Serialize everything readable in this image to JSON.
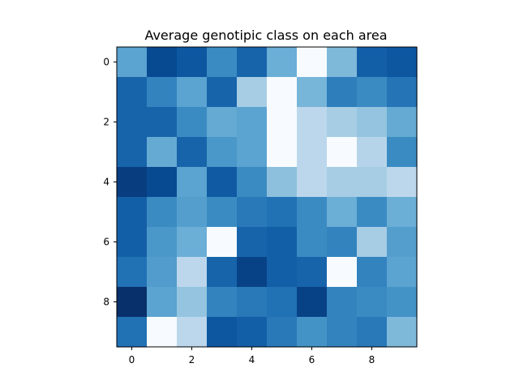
{
  "chart_data": {
    "type": "heatmap",
    "title": "Average genotipic class on each area",
    "xlabel": "",
    "ylabel": "",
    "colormap": "Blues",
    "vmin": 0,
    "vmax": 1,
    "x_ticks": [
      0,
      2,
      4,
      6,
      8
    ],
    "y_ticks": [
      0,
      2,
      4,
      6,
      8
    ],
    "x_tick_labels": [
      "0",
      "2",
      "4",
      "6",
      "8"
    ],
    "y_tick_labels": [
      "0",
      "2",
      "4",
      "6",
      "8"
    ],
    "rows": 10,
    "cols": 10,
    "values": [
      [
        0.55,
        0.9,
        0.85,
        0.65,
        0.8,
        0.5,
        0.0,
        0.45,
        0.82,
        0.85
      ],
      [
        0.8,
        0.68,
        0.55,
        0.8,
        0.35,
        0.0,
        0.47,
        0.7,
        0.65,
        0.74
      ],
      [
        0.8,
        0.8,
        0.65,
        0.52,
        0.55,
        0.0,
        0.28,
        0.35,
        0.4,
        0.52
      ],
      [
        0.8,
        0.52,
        0.8,
        0.6,
        0.55,
        0.0,
        0.28,
        0.0,
        0.3,
        0.65
      ],
      [
        0.95,
        0.9,
        0.55,
        0.84,
        0.65,
        0.42,
        0.28,
        0.35,
        0.35,
        0.28
      ],
      [
        0.82,
        0.65,
        0.57,
        0.65,
        0.72,
        0.75,
        0.65,
        0.5,
        0.65,
        0.5
      ],
      [
        0.82,
        0.6,
        0.5,
        0.0,
        0.8,
        0.82,
        0.65,
        0.68,
        0.35,
        0.57
      ],
      [
        0.75,
        0.58,
        0.28,
        0.8,
        0.93,
        0.82,
        0.8,
        0.0,
        0.68,
        0.55
      ],
      [
        1.0,
        0.55,
        0.4,
        0.68,
        0.72,
        0.75,
        0.93,
        0.68,
        0.65,
        0.62
      ],
      [
        0.75,
        0.0,
        0.28,
        0.85,
        0.82,
        0.72,
        0.62,
        0.68,
        0.72,
        0.45
      ]
    ]
  }
}
